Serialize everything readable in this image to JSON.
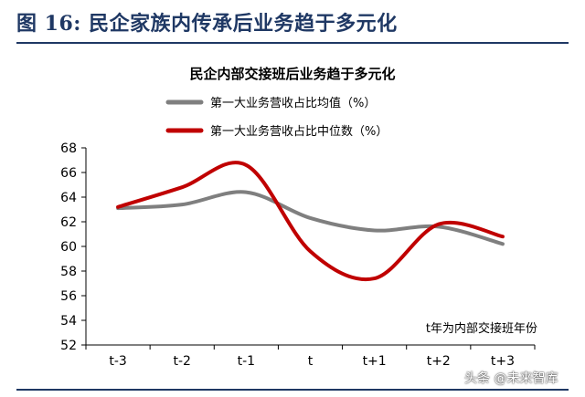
{
  "figure": {
    "label": "图 16:",
    "title": "民企家族内传承后业务趋于多元化"
  },
  "watermark": "头条 @未来智库",
  "chart_data": {
    "type": "line",
    "title": "民企内部交接班后业务趋于多元化",
    "categories": [
      "t-3",
      "t-2",
      "t-1",
      "t",
      "t+1",
      "t+2",
      "t+3"
    ],
    "annotation": "t年为内部交接班年份",
    "ylim": [
      52,
      68
    ],
    "yticks": [
      52,
      54,
      56,
      58,
      60,
      62,
      64,
      66,
      68
    ],
    "grid": false,
    "legend_position": "top",
    "series": [
      {
        "name": "第一大业务营收占比均值（%）",
        "color": "#7f7f7f",
        "values": [
          63.1,
          63.4,
          64.4,
          62.3,
          61.3,
          61.6,
          60.2
        ]
      },
      {
        "name": "第一大业务营收占比中位数（%）",
        "color": "#c00000",
        "values": [
          63.2,
          64.8,
          66.6,
          59.6,
          57.4,
          61.8,
          60.8
        ]
      }
    ]
  }
}
